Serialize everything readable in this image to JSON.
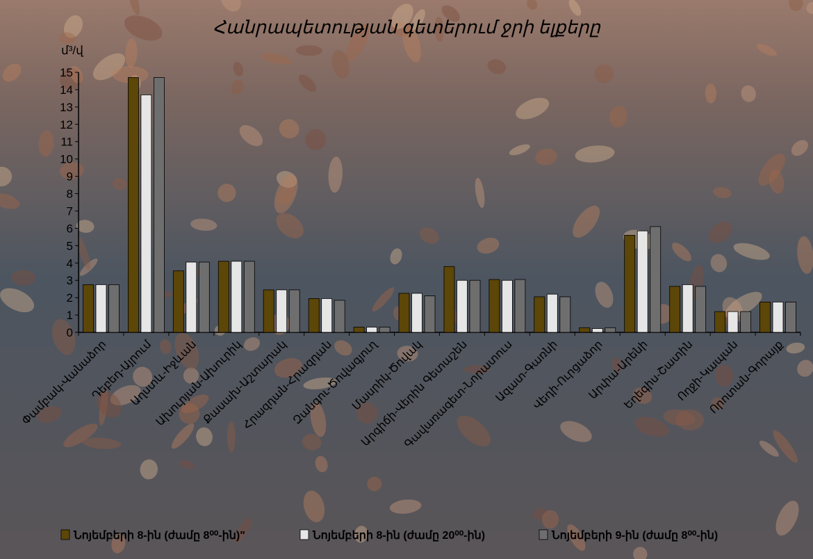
{
  "colors": {
    "series_1": "#5c4608",
    "series_2": "#e6e6e6",
    "series_3": "#6e6e6e",
    "axis": "#000000",
    "background_dark": "#3c4550",
    "background_warm": "#8e6c5c"
  },
  "chart_data": {
    "type": "bar",
    "title": "Հանրապետության գետերում ջրի ելքերը",
    "xlabel": "",
    "ylabel": "մ³/վ",
    "ylim": [
      0,
      15
    ],
    "yticks": [
      "0",
      "1",
      "2",
      "3",
      "4",
      "5",
      "6",
      "7",
      "8",
      "9",
      "10",
      "11",
      "12",
      "13",
      "14",
      "15"
    ],
    "grid": false,
    "legend_position": "bottom",
    "categories": [
      "Փամբակ-Վանաձոր",
      "Դեբեդ-Այրում",
      "Աղստև-Իջևան",
      "Ախուրյան-Ախուրիկ",
      "Քասախ-Աշտարակ",
      "Հրազդան-Հրազդան",
      "Զանգու-Ծովագյուղ",
      "Մասրիկ-Ծովակ",
      "Արգիճի-Վերին Գետաշեն",
      "Գավառագետ-Նորատուս",
      "Ազատ-Գառնի",
      "Վեդի-Ուրցաձոր",
      "Արփա-Արենի",
      "Եղեգիս-Շատին",
      "Ողջի-Կապան",
      "Որոտան-Գորայք"
    ],
    "series": [
      {
        "name": "Նոյեմբերի 8-ին (ժամը 8⁰⁰-ին)\"",
        "values": [
          2.75,
          14.7,
          3.55,
          4.1,
          2.45,
          1.95,
          0.3,
          2.25,
          3.8,
          3.05,
          2.05,
          0.27,
          5.6,
          2.65,
          1.2,
          1.75
        ]
      },
      {
        "name": "Նոյեմբերի 8-ին (ժամը 20⁰⁰-ին)",
        "values": [
          2.75,
          13.7,
          4.05,
          4.1,
          2.45,
          1.95,
          0.3,
          2.25,
          3.0,
          3.0,
          2.2,
          0.22,
          5.85,
          2.75,
          1.2,
          1.75
        ]
      },
      {
        "name": "Նոյեմբերի 9-ին (ժամը 8⁰⁰-ին)",
        "values": [
          2.75,
          14.7,
          4.05,
          4.1,
          2.45,
          1.85,
          0.3,
          2.1,
          3.0,
          3.05,
          2.05,
          0.27,
          6.1,
          2.65,
          1.2,
          1.75
        ]
      }
    ]
  }
}
